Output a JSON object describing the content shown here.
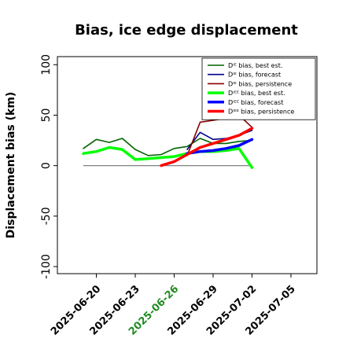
{
  "chart_data": {
    "type": "line",
    "title": "Bias, ice edge displacement",
    "xlabel": "",
    "ylabel": "Displacement bias (km)",
    "xlim": [
      "2025-06-17",
      "2025-07-07"
    ],
    "ylim": [
      -107,
      108
    ],
    "y_ticks": [
      -100,
      -50,
      0,
      50,
      100
    ],
    "x_ticks": [
      {
        "label": "2025-06-20",
        "date": "2025-06-20",
        "color": "#000000"
      },
      {
        "label": "2025-06-23",
        "date": "2025-06-23",
        "color": "#000000"
      },
      {
        "label": "2025-06-26",
        "date": "2025-06-26",
        "color": "#228b22"
      },
      {
        "label": "2025-06-29",
        "date": "2025-06-29",
        "color": "#000000"
      },
      {
        "label": "2025-07-02",
        "date": "2025-07-02",
        "color": "#000000"
      },
      {
        "label": "2025-07-05",
        "date": "2025-07-05",
        "color": "#000000"
      }
    ],
    "grid": false,
    "legend_position": "top-right",
    "zero_line": {
      "x": [
        "2025-06-19",
        "2025-07-02"
      ],
      "y": 0,
      "color": "#808080"
    },
    "series": [
      {
        "name": "Dᴵᴱ bias, best est.",
        "color": "#006400",
        "width": 1.6,
        "x": [
          "2025-06-19",
          "2025-06-20",
          "2025-06-21",
          "2025-06-22",
          "2025-06-23",
          "2025-06-24",
          "2025-06-25",
          "2025-06-26",
          "2025-06-27",
          "2025-06-28",
          "2025-06-29",
          "2025-06-30",
          "2025-07-01",
          "2025-07-02"
        ],
        "y": [
          17,
          26,
          23,
          27,
          16,
          10,
          11,
          17,
          19,
          27,
          22,
          22,
          24,
          25
        ]
      },
      {
        "name": "Dᴵᴱ bias, forecast",
        "color": "#00008b",
        "width": 1.6,
        "x": [
          "2025-06-27",
          "2025-06-28",
          "2025-06-29",
          "2025-06-30",
          "2025-07-01",
          "2025-07-02"
        ],
        "y": [
          16,
          33,
          26,
          27,
          30,
          35
        ]
      },
      {
        "name": "Dᴵᴱ bias, persistence",
        "color": "#8b0000",
        "width": 1.6,
        "x": [
          "2025-06-27",
          "2025-06-28",
          "2025-06-29",
          "2025-06-30",
          "2025-07-01",
          "2025-07-02"
        ],
        "y": [
          10,
          43,
          45,
          47,
          50,
          38
        ]
      },
      {
        "name": "Dᴵᴱᴱ bias, best est.",
        "color": "#00ff00",
        "width": 3.5,
        "x": [
          "2025-06-19",
          "2025-06-20",
          "2025-06-21",
          "2025-06-22",
          "2025-06-23",
          "2025-06-24",
          "2025-06-25",
          "2025-06-26",
          "2025-06-27",
          "2025-06-28",
          "2025-06-29",
          "2025-06-30",
          "2025-07-01",
          "2025-07-02"
        ],
        "y": [
          12,
          14,
          18,
          16,
          6,
          7,
          8,
          9,
          12,
          14,
          14,
          15,
          17,
          -2
        ]
      },
      {
        "name": "Dᴵᴱᴱ bias, forecast",
        "color": "#0000ff",
        "width": 3.5,
        "x": [
          "2025-06-27",
          "2025-06-28",
          "2025-06-29",
          "2025-06-30",
          "2025-07-01",
          "2025-07-02"
        ],
        "y": [
          12,
          14,
          15,
          17,
          20,
          26
        ]
      },
      {
        "name": "Dᴵᴱᴱ bias, persistence",
        "color": "#ff0000",
        "width": 3.5,
        "x": [
          "2025-06-25",
          "2025-06-26",
          "2025-06-27",
          "2025-06-28",
          "2025-06-29",
          "2025-06-30",
          "2025-07-01",
          "2025-07-02"
        ],
        "y": [
          0,
          4,
          11,
          18,
          22,
          26,
          30,
          37
        ]
      }
    ]
  }
}
